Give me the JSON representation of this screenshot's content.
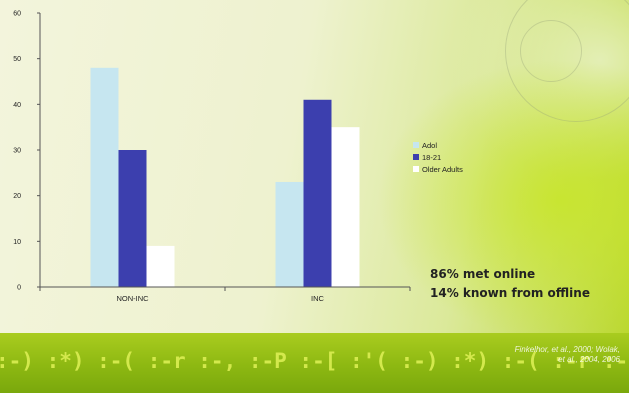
{
  "chart_data": {
    "type": "bar",
    "categories": [
      "NON-INC",
      "INC"
    ],
    "series": [
      {
        "name": "Adol",
        "values": [
          48,
          23
        ],
        "color": "#c6e6f0"
      },
      {
        "name": "18-21",
        "values": [
          30,
          41
        ],
        "color": "#3c3fae"
      },
      {
        "name": "Older Adults",
        "values": [
          9,
          35
        ],
        "color": "#ffffff"
      }
    ],
    "yticks": [
      0,
      10,
      20,
      30,
      40,
      50,
      60
    ],
    "ylim": [
      0,
      60
    ],
    "legend": "right"
  },
  "note": {
    "line1": "86% met online",
    "line2": "14% known from offline"
  },
  "citation": {
    "line1": "Finkelhor, et al., 2000; Wolak,",
    "line2": "et al., 2004, 2006"
  },
  "background": {
    "emoticons": ":-)  :*)  :-(  :-r  :-,  :-P  :-[  :'(  :-)  :*)  :-(  :-r  :-)  :-P  :-["
  },
  "colors": {
    "accent_green": "#9cc31a",
    "bar_dark_blue": "#3c3fae",
    "bar_light_blue": "#c6e6f0"
  }
}
